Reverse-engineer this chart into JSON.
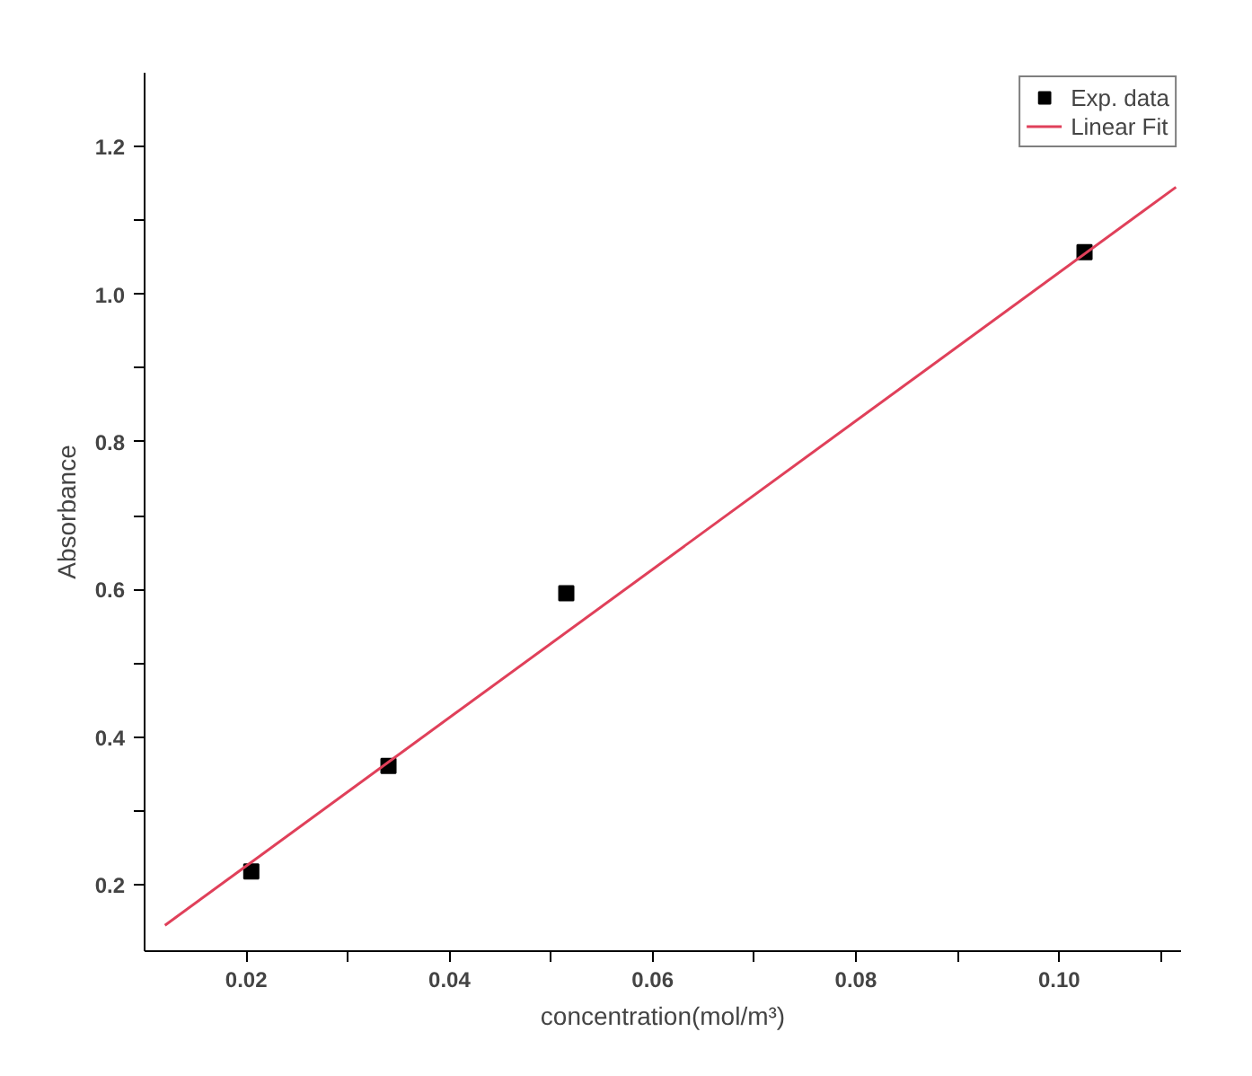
{
  "chart_data": {
    "type": "scatter",
    "xlabel": "concentration(mol/m³)",
    "ylabel": "Absorbance",
    "xlim": [
      0.01,
      0.112
    ],
    "ylim": [
      0.11,
      1.3
    ],
    "xticks": [
      {
        "value": 0.02,
        "label": "0.02"
      },
      {
        "value": 0.03,
        "label": null
      },
      {
        "value": 0.04,
        "label": "0.04"
      },
      {
        "value": 0.05,
        "label": null
      },
      {
        "value": 0.06,
        "label": "0.06"
      },
      {
        "value": 0.07,
        "label": null
      },
      {
        "value": 0.08,
        "label": "0.08"
      },
      {
        "value": 0.09,
        "label": null
      },
      {
        "value": 0.1,
        "label": "0.10"
      },
      {
        "value": 0.11,
        "label": null
      }
    ],
    "yticks": [
      {
        "value": 0.2,
        "label": "0.2"
      },
      {
        "value": 0.3,
        "label": null
      },
      {
        "value": 0.4,
        "label": "0.4"
      },
      {
        "value": 0.5,
        "label": null
      },
      {
        "value": 0.6,
        "label": "0.6"
      },
      {
        "value": 0.7,
        "label": null
      },
      {
        "value": 0.8,
        "label": "0.8"
      },
      {
        "value": 0.9,
        "label": null
      },
      {
        "value": 1.0,
        "label": "1.0"
      },
      {
        "value": 1.1,
        "label": null
      },
      {
        "value": 1.2,
        "label": "1.2"
      }
    ],
    "grid": false,
    "legend": "top right",
    "series": [
      {
        "name": "Exp. data",
        "marker": "square",
        "color": "#000000",
        "x": [
          0.0205,
          0.034,
          0.0515,
          0.1025
        ],
        "values": [
          0.218,
          0.361,
          0.595,
          1.057
        ]
      },
      {
        "name": "Linear Fit",
        "type": "line",
        "color": "#e0405a",
        "x": [
          0.012,
          0.1115
        ],
        "values": [
          0.145,
          1.145
        ]
      }
    ]
  }
}
